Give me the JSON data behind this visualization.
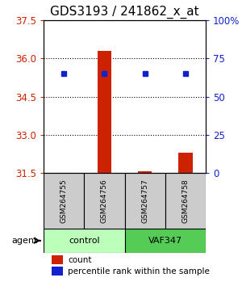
{
  "title": "GDS3193 / 241862_x_at",
  "samples": [
    "GSM264755",
    "GSM264756",
    "GSM264757",
    "GSM264758"
  ],
  "groups": [
    "control",
    "control",
    "VAF347",
    "VAF347"
  ],
  "group_labels": [
    "control",
    "VAF347"
  ],
  "group_colors": [
    "#aaffaa",
    "#55dd55"
  ],
  "count_values": [
    31.52,
    36.3,
    31.58,
    32.3
  ],
  "percentile_values": [
    65,
    65,
    65,
    65
  ],
  "ylim_left": [
    31.5,
    37.5
  ],
  "yticks_left": [
    31.5,
    33.0,
    34.5,
    36.0,
    37.5
  ],
  "yticks_right": [
    0,
    25,
    50,
    75,
    100
  ],
  "bar_color": "#cc2200",
  "dot_color": "#1122cc",
  "bar_base": 31.5,
  "percentile_base": 31.5,
  "percentile_scale_max": 37.5,
  "left_axis_color": "#cc2200",
  "right_axis_color": "#1122cc",
  "title_fontsize": 11,
  "tick_fontsize": 8.5,
  "sample_area_color": "#cccccc",
  "control_group_color": "#bbffbb",
  "vaf347_group_color": "#55cc55"
}
